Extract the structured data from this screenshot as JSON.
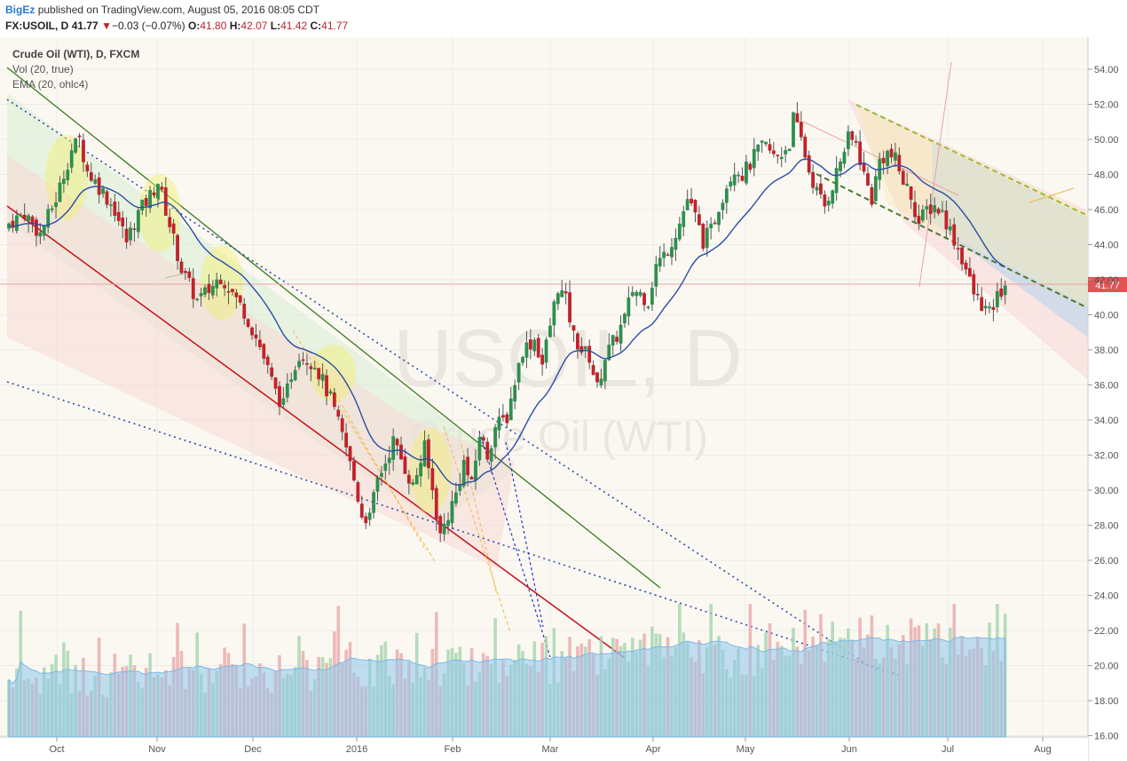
{
  "header": {
    "author": "BigEz",
    "published": "published on TradingView.com, August 05, 2016 08:05 CDT",
    "symbol": "FX:USOIL, D",
    "last": "41.77",
    "arrow": "▼",
    "change": "−0.03 (−0.07%)",
    "o_label": "O:",
    "o": "41.80",
    "h_label": "H:",
    "h": "42.07",
    "l_label": "L:",
    "l": "41.42",
    "c_label": "C:",
    "c": "41.77"
  },
  "legend": {
    "title": "Crude Oil (WTI), D, FXCM",
    "vol": "Vol (20, true)",
    "ema": "EMA (20, ohlc4)"
  },
  "watermark": {
    "main": "USOIL, D",
    "sub": "Crude Oil (WTI)"
  },
  "colors": {
    "up": "#2f8f4e",
    "down": "#c0232b",
    "ema": "#2a4ea6",
    "vol_up": "#9fd3a8",
    "vol_down": "#e8a4a4",
    "vol_ma": "#8fc6ee",
    "price_tag": "#e05454",
    "grid": "#ececec"
  },
  "chart_data": {
    "type": "candlestick",
    "y_ticks": [
      "54.00",
      "52.00",
      "50.00",
      "48.00",
      "46.00",
      "44.00",
      "42.00",
      "40.00",
      "38.00",
      "36.00",
      "34.00",
      "32.00",
      "30.00",
      "28.00",
      "26.00",
      "24.00",
      "22.00",
      "20.00",
      "18.00",
      "16.00"
    ],
    "x_ticks": [
      "Oct",
      "Nov",
      "Dec",
      "2016",
      "Feb",
      "Mar",
      "Apr",
      "May",
      "Jun",
      "Jul",
      "Aug"
    ],
    "ylim": [
      16,
      55.6
    ],
    "last_price": "41.77",
    "close_path": [
      [
        0,
        45.2
      ],
      [
        4,
        45.8
      ],
      [
        8,
        44.6
      ],
      [
        12,
        46.6
      ],
      [
        16,
        49.4
      ],
      [
        18,
        50.0
      ],
      [
        20,
        48.2
      ],
      [
        24,
        47.0
      ],
      [
        27,
        46.0
      ],
      [
        30,
        44.2
      ],
      [
        33,
        45.8
      ],
      [
        36,
        46.8
      ],
      [
        38,
        47.6
      ],
      [
        40,
        46.0
      ],
      [
        44,
        42.6
      ],
      [
        48,
        40.8
      ],
      [
        51,
        41.4
      ],
      [
        54,
        42.2
      ],
      [
        56,
        41.6
      ],
      [
        60,
        40.2
      ],
      [
        64,
        38.2
      ],
      [
        68,
        35.6
      ],
      [
        70,
        34.8
      ],
      [
        72,
        36.6
      ],
      [
        74,
        37.8
      ],
      [
        78,
        37.2
      ],
      [
        82,
        35.2
      ],
      [
        86,
        32.4
      ],
      [
        88,
        30.6
      ],
      [
        90,
        28.6
      ],
      [
        92,
        28.4
      ],
      [
        94,
        30.6
      ],
      [
        96,
        31.6
      ],
      [
        98,
        32.8
      ],
      [
        100,
        31.8
      ],
      [
        103,
        30.2
      ],
      [
        106,
        32.4
      ],
      [
        108,
        30.0
      ],
      [
        110,
        27.4
      ],
      [
        112,
        28.6
      ],
      [
        114,
        29.8
      ],
      [
        116,
        31.6
      ],
      [
        118,
        30.2
      ],
      [
        120,
        33.2
      ],
      [
        122,
        32.0
      ],
      [
        124,
        33.6
      ],
      [
        127,
        34.2
      ],
      [
        129,
        36.2
      ],
      [
        131,
        38.0
      ],
      [
        134,
        38.6
      ],
      [
        136,
        37.2
      ],
      [
        138,
        39.4
      ],
      [
        140,
        41.6
      ],
      [
        142,
        40.8
      ],
      [
        144,
        38.8
      ],
      [
        146,
        38.0
      ],
      [
        148,
        37.6
      ],
      [
        150,
        35.8
      ],
      [
        152,
        37.6
      ],
      [
        155,
        38.8
      ],
      [
        157,
        39.8
      ],
      [
        159,
        41.4
      ],
      [
        161,
        41.2
      ],
      [
        163,
        40.8
      ],
      [
        165,
        42.8
      ],
      [
        167,
        43.4
      ],
      [
        169,
        44.2
      ],
      [
        171,
        45.2
      ],
      [
        173,
        46.6
      ],
      [
        175,
        45.6
      ],
      [
        177,
        44.2
      ],
      [
        179,
        44.8
      ],
      [
        181,
        46.2
      ],
      [
        183,
        47.4
      ],
      [
        185,
        48.4
      ],
      [
        187,
        48.0
      ],
      [
        189,
        48.6
      ],
      [
        191,
        49.4
      ],
      [
        193,
        49.6
      ],
      [
        195,
        49.0
      ],
      [
        197,
        49.2
      ],
      [
        199,
        49.8
      ],
      [
        200,
        51.2
      ],
      [
        202,
        50.0
      ],
      [
        204,
        48.2
      ],
      [
        206,
        47.0
      ],
      [
        208,
        46.2
      ],
      [
        210,
        47.4
      ],
      [
        212,
        48.8
      ],
      [
        214,
        50.0
      ],
      [
        216,
        49.8
      ],
      [
        218,
        48.0
      ],
      [
        220,
        46.6
      ],
      [
        222,
        48.8
      ],
      [
        224,
        49.2
      ],
      [
        226,
        48.8
      ],
      [
        228,
        47.6
      ],
      [
        230,
        46.8
      ],
      [
        232,
        45.2
      ],
      [
        234,
        46.0
      ],
      [
        236,
        46.2
      ],
      [
        238,
        45.8
      ],
      [
        240,
        44.8
      ],
      [
        242,
        43.8
      ],
      [
        244,
        42.6
      ],
      [
        246,
        41.2
      ],
      [
        248,
        40.6
      ],
      [
        250,
        40.0
      ],
      [
        252,
        41.0
      ],
      [
        254,
        41.77
      ]
    ]
  }
}
